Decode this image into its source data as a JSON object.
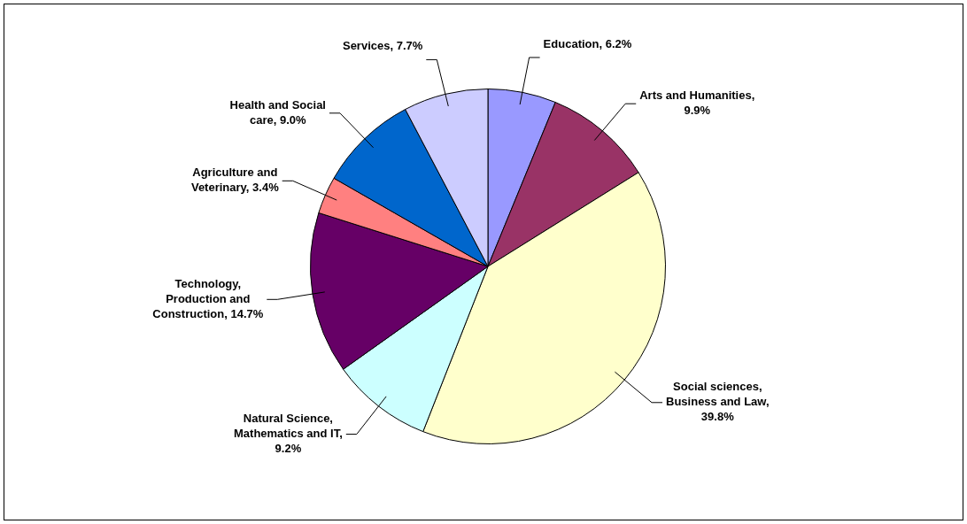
{
  "chart_data": {
    "type": "pie",
    "categories": [
      "Education, 6.2%",
      "Arts and Humanities, 9.9%",
      "Social sciences, Business and Law, 39.8%",
      "Natural Science, Mathematics and IT, 9.2%",
      "Technology, Production and Construction, 14.7%",
      "Agriculture and Veterinary, 3.4%",
      "Health and Social care, 9.0%",
      "Services, 7.7%"
    ],
    "values": [
      6.2,
      9.9,
      39.8,
      9.2,
      14.7,
      3.4,
      9.0,
      7.7
    ],
    "colors": [
      "#9999ff",
      "#993366",
      "#ffffcc",
      "#ccffff",
      "#660066",
      "#ff8080",
      "#0066cc",
      "#ccccff"
    ],
    "legend": false
  }
}
